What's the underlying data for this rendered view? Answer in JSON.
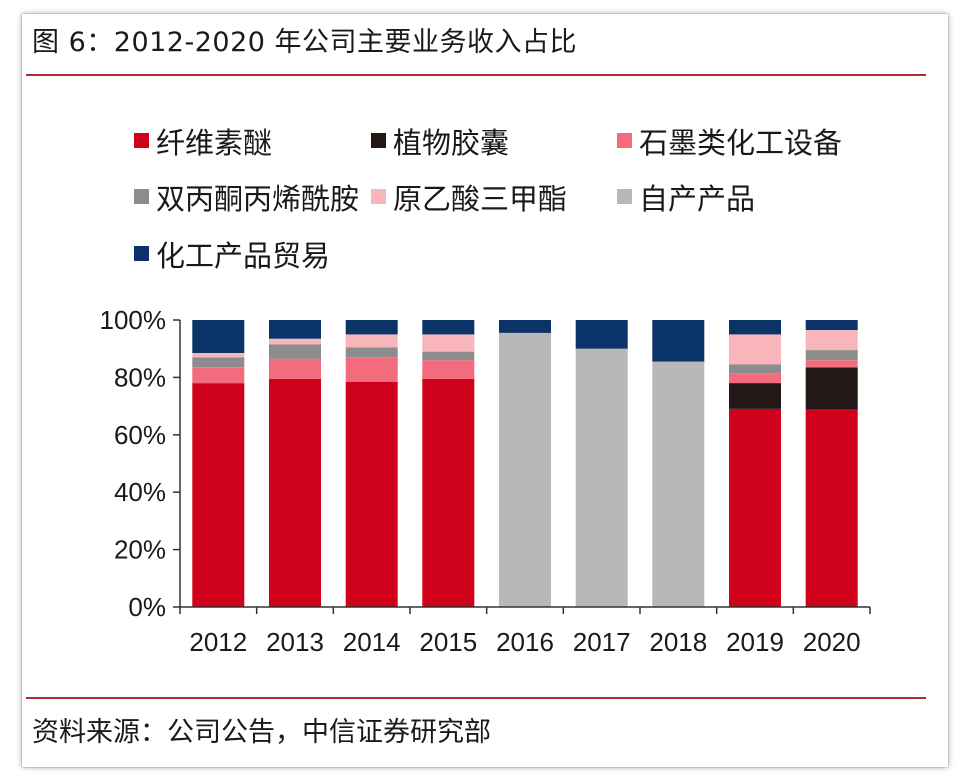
{
  "title": "图 6：2012-2020 年公司主要业务收入占比",
  "source": "资料来源：公司公告，中信证券研究部",
  "chart_data": {
    "type": "bar",
    "stacked": true,
    "categories": [
      "2012",
      "2013",
      "2014",
      "2015",
      "2016",
      "2017",
      "2018",
      "2019",
      "2020"
    ],
    "ylim": [
      0,
      100
    ],
    "yticks": [
      "0%",
      "20%",
      "40%",
      "60%",
      "80%",
      "100%"
    ],
    "yticks_values": [
      0,
      20,
      40,
      60,
      80,
      100
    ],
    "legend_position": "top",
    "series": [
      {
        "name": "纤维素醚",
        "color": "#d0021b",
        "values": [
          78,
          79.5,
          78.5,
          79.5,
          0,
          0,
          0,
          69,
          69
        ]
      },
      {
        "name": "植物胶囊",
        "color": "#231815",
        "values": [
          0,
          0,
          0,
          0,
          0,
          0,
          0,
          9,
          14.5
        ]
      },
      {
        "name": "石墨类化工设备",
        "color": "#f36c7d",
        "values": [
          5.5,
          7,
          8.5,
          6.5,
          0,
          0,
          0,
          3.5,
          2.5
        ]
      },
      {
        "name": "双丙酮丙烯酰胺",
        "color": "#8c8c8c",
        "values": [
          3.5,
          5,
          3.5,
          3,
          0,
          0,
          0,
          3,
          3.5
        ]
      },
      {
        "name": "原乙酸三甲酯",
        "color": "#f8b6bb",
        "values": [
          1.5,
          2,
          4.5,
          6,
          0,
          0,
          0,
          10.5,
          7
        ]
      },
      {
        "name": "自产产品",
        "color": "#b8b8b8",
        "values": [
          0,
          0,
          0,
          0,
          95.5,
          90,
          85.5,
          0,
          0
        ]
      },
      {
        "name": "化工产品贸易",
        "color": "#0a3468",
        "values": [
          11.5,
          6.5,
          5,
          5,
          4.5,
          10,
          14.5,
          5,
          3.5
        ]
      }
    ]
  }
}
